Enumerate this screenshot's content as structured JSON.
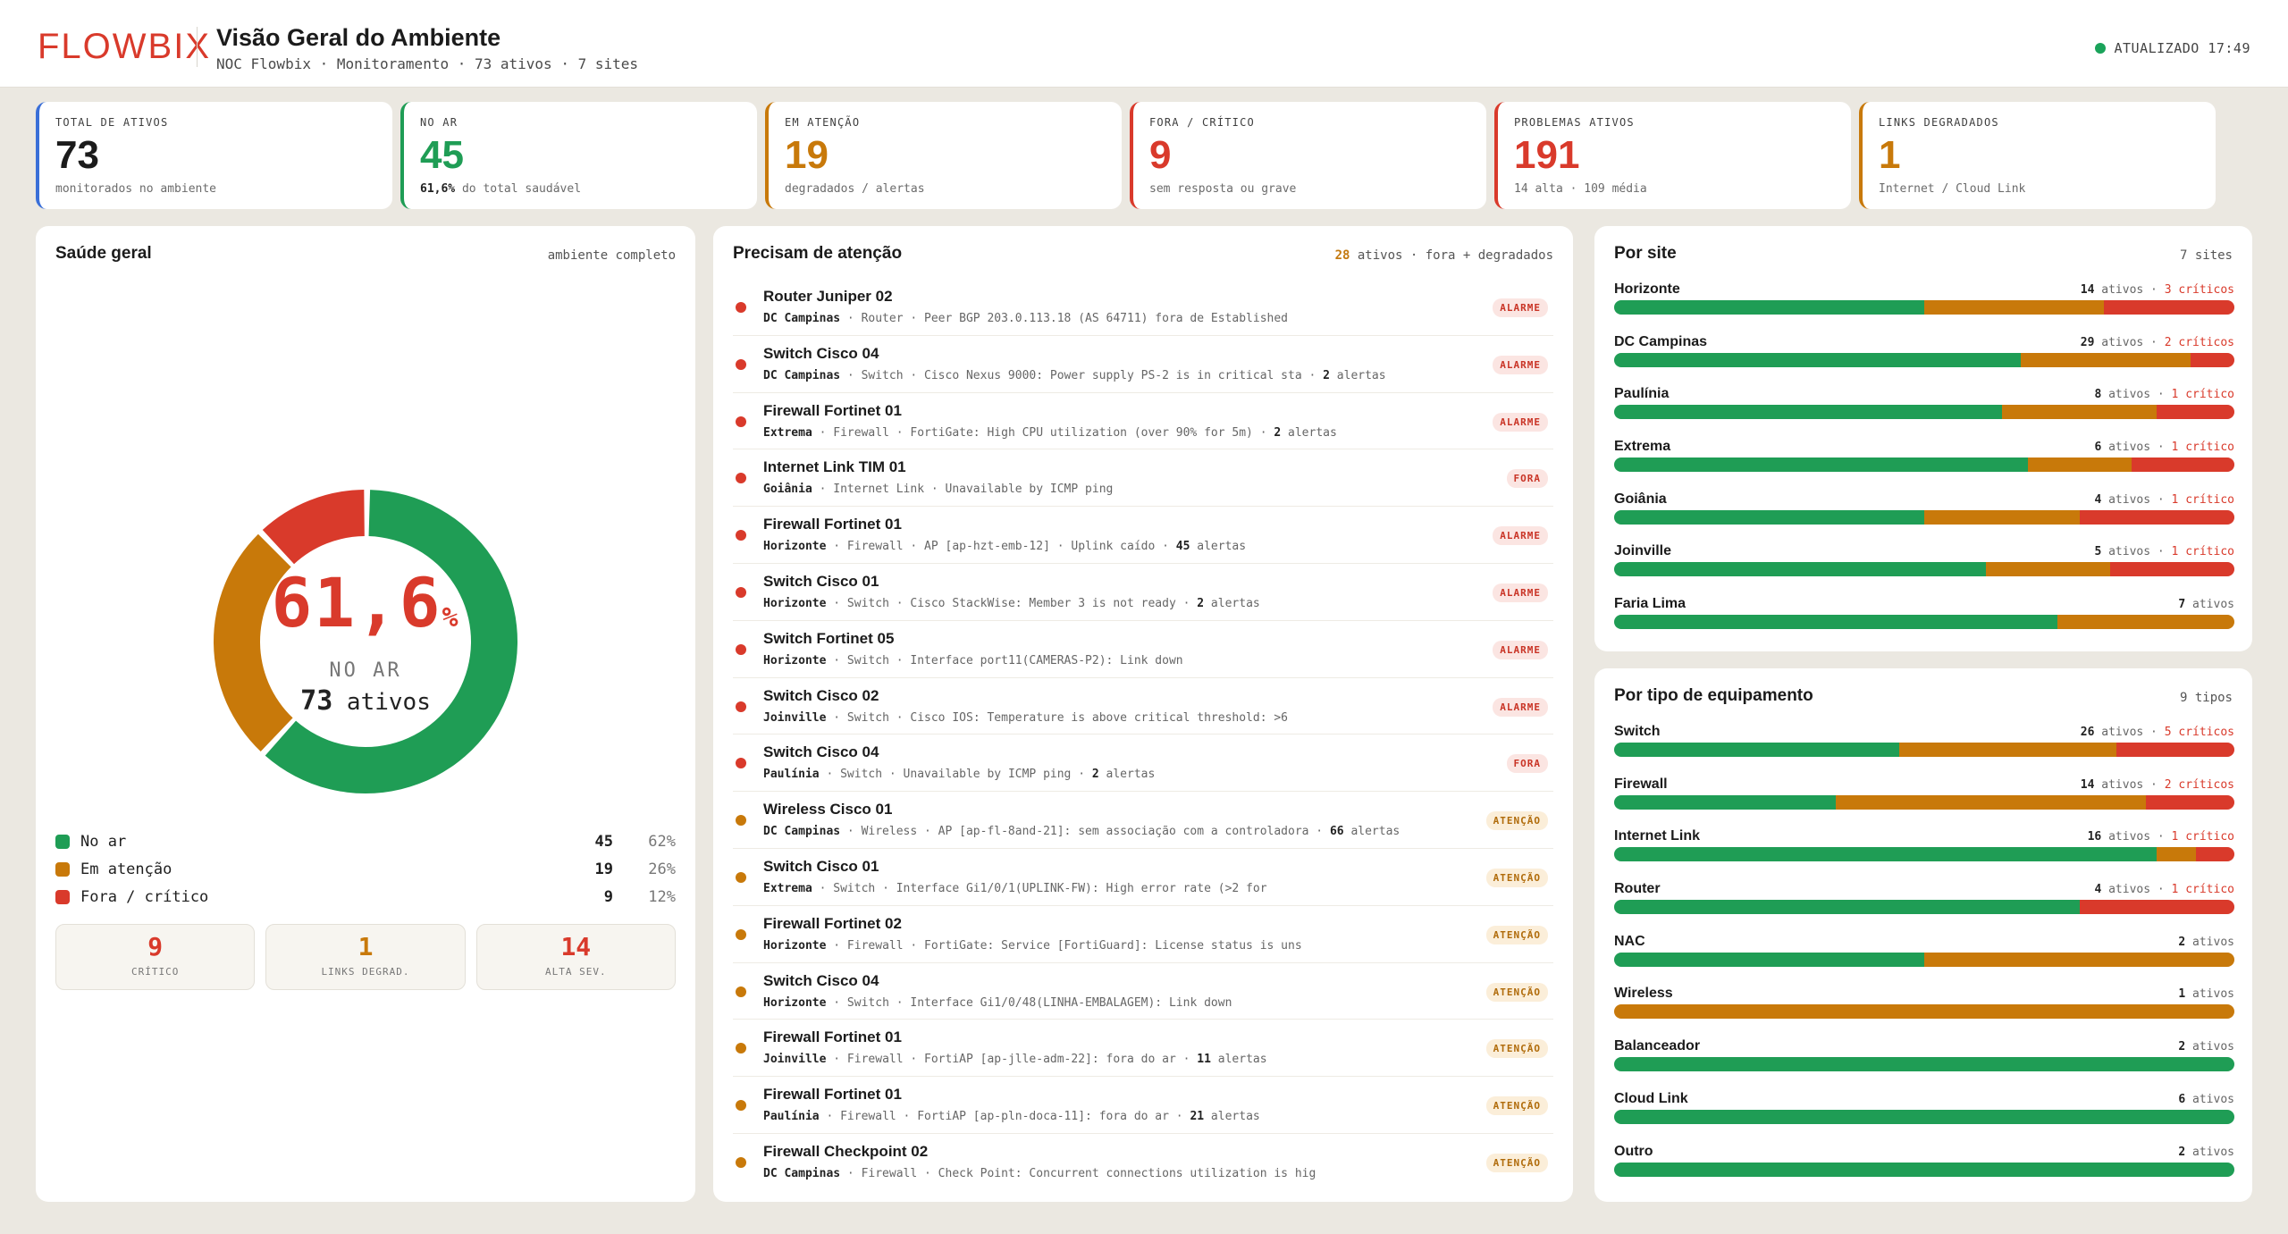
{
  "header": {
    "logo": "FLOWBIX",
    "title": "Visão Geral do Ambiente",
    "subtitle": "NOC Flowbix · Monitoramento · 73 ativos · 7 sites",
    "updated": "ATUALIZADO 17:49"
  },
  "colors": {
    "green": "#1f9d55",
    "amber": "#c8790a",
    "red": "#d93a2b",
    "blue": "#3a6fd8"
  },
  "kpis": [
    {
      "label": "TOTAL DE ATIVOS",
      "value": "73",
      "sub_bold": "",
      "sub": "monitorados no ambiente",
      "color": "#1b1b1b",
      "border": "#3a6fd8"
    },
    {
      "label": "NO AR",
      "value": "45",
      "sub_bold": "61,6%",
      "sub": " do total saudável",
      "color": "#1f9d55",
      "border": "#1f9d55"
    },
    {
      "label": "EM ATENÇÃO",
      "value": "19",
      "sub_bold": "",
      "sub": "degradados / alertas",
      "color": "#c8790a",
      "border": "#c8790a"
    },
    {
      "label": "FORA / CRÍTICO",
      "value": "9",
      "sub_bold": "",
      "sub": "sem resposta ou grave",
      "color": "#d93a2b",
      "border": "#d93a2b"
    },
    {
      "label": "PROBLEMAS ATIVOS",
      "value": "191",
      "sub_bold": "",
      "sub": "14 alta · 109 média",
      "color": "#d93a2b",
      "border": "#d93a2b"
    },
    {
      "label": "LINKS DEGRADADOS",
      "value": "1",
      "sub_bold": "",
      "sub": "Internet / Cloud Link",
      "color": "#c8790a",
      "border": "#c8790a"
    }
  ],
  "health": {
    "title": "Saúde geral",
    "meta": "ambiente completo",
    "percent_main": "61,6",
    "percent_sign": "%",
    "label": "NO AR",
    "assets_count": "73",
    "assets_word": "ativos",
    "segments": [
      {
        "name": "No ar",
        "value": 45,
        "color": "#1f9d55"
      },
      {
        "name": "Em atenção",
        "value": 19,
        "color": "#c8790a"
      },
      {
        "name": "Fora / crítico",
        "value": 9,
        "color": "#d93a2b"
      }
    ],
    "legend": [
      {
        "name": "No ar",
        "count": "45",
        "pct": "62%",
        "color": "#1f9d55"
      },
      {
        "name": "Em atenção",
        "count": "19",
        "pct": "26%",
        "color": "#c8790a"
      },
      {
        "name": "Fora / crítico",
        "count": "9",
        "pct": "12%",
        "color": "#d93a2b"
      }
    ],
    "minis": [
      {
        "value": "9",
        "label": "CRÍTICO",
        "color": "#d93a2b"
      },
      {
        "value": "1",
        "label": "LINKS DEGRAD.",
        "color": "#c8790a"
      },
      {
        "value": "14",
        "label": "ALTA SEV.",
        "color": "#d93a2b"
      }
    ]
  },
  "attention": {
    "title": "Precisam de atenção",
    "meta_count": "28",
    "meta_text": " ativos · fora + degradados",
    "items": [
      {
        "name": "Router Juniper 02",
        "site": "DC Campinas",
        "detail": " · Router · Peer BGP 203.0.113.18 (AS 64711) fora de Established",
        "alerts": "",
        "badge": "ALARME",
        "kind": "alarme",
        "dot": "#d93a2b"
      },
      {
        "name": "Switch Cisco 04",
        "site": "DC Campinas",
        "detail": " · Switch · Cisco Nexus 9000: Power supply PS-2 is in critical sta · ",
        "alerts": "2",
        "alerts_word": " alertas",
        "badge": "ALARME",
        "kind": "alarme",
        "dot": "#d93a2b"
      },
      {
        "name": "Firewall Fortinet 01",
        "site": "Extrema",
        "detail": " · Firewall · FortiGate: High CPU utilization (over 90% for 5m) · ",
        "alerts": "2",
        "alerts_word": " alertas",
        "badge": "ALARME",
        "kind": "alarme",
        "dot": "#d93a2b"
      },
      {
        "name": "Internet Link TIM 01",
        "site": "Goiânia",
        "detail": " · Internet Link · Unavailable by ICMP ping",
        "alerts": "",
        "badge": "FORA",
        "kind": "fora",
        "dot": "#d93a2b"
      },
      {
        "name": "Firewall Fortinet 01",
        "site": "Horizonte",
        "detail": " · Firewall · AP [ap-hzt-emb-12] · Uplink caído · ",
        "alerts": "45",
        "alerts_word": " alertas",
        "badge": "ALARME",
        "kind": "alarme",
        "dot": "#d93a2b"
      },
      {
        "name": "Switch Cisco 01",
        "site": "Horizonte",
        "detail": " · Switch · Cisco StackWise: Member 3 is not ready · ",
        "alerts": "2",
        "alerts_word": " alertas",
        "badge": "ALARME",
        "kind": "alarme",
        "dot": "#d93a2b"
      },
      {
        "name": "Switch Fortinet 05",
        "site": "Horizonte",
        "detail": " · Switch · Interface port11(CAMERAS-P2): Link down",
        "alerts": "",
        "badge": "ALARME",
        "kind": "alarme",
        "dot": "#d93a2b"
      },
      {
        "name": "Switch Cisco 02",
        "site": "Joinville",
        "detail": " · Switch · Cisco IOS: Temperature is above critical threshold: >6",
        "alerts": "",
        "badge": "ALARME",
        "kind": "alarme",
        "dot": "#d93a2b"
      },
      {
        "name": "Switch Cisco 04",
        "site": "Paulínia",
        "detail": " · Switch · Unavailable by ICMP ping · ",
        "alerts": "2",
        "alerts_word": " alertas",
        "badge": "FORA",
        "kind": "fora",
        "dot": "#d93a2b"
      },
      {
        "name": "Wireless Cisco 01",
        "site": "DC Campinas",
        "detail": " · Wireless · AP [ap-fl-8and-21]: sem associação com a controladora · ",
        "alerts": "66",
        "alerts_word": " alertas",
        "badge": "ATENÇÃO",
        "kind": "atencao",
        "dot": "#c8790a"
      },
      {
        "name": "Switch Cisco 01",
        "site": "Extrema",
        "detail": " · Switch · Interface Gi1/0/1(UPLINK-FW): High error rate (>2 for",
        "alerts": "",
        "badge": "ATENÇÃO",
        "kind": "atencao",
        "dot": "#c8790a"
      },
      {
        "name": "Firewall Fortinet 02",
        "site": "Horizonte",
        "detail": " · Firewall · FortiGate: Service [FortiGuard]: License status is uns",
        "alerts": "",
        "badge": "ATENÇÃO",
        "kind": "atencao",
        "dot": "#c8790a"
      },
      {
        "name": "Switch Cisco 04",
        "site": "Horizonte",
        "detail": " · Switch · Interface Gi1/0/48(LINHA-EMBALAGEM): Link down",
        "alerts": "",
        "badge": "ATENÇÃO",
        "kind": "atencao",
        "dot": "#c8790a"
      },
      {
        "name": "Firewall Fortinet 01",
        "site": "Joinville",
        "detail": " · Firewall · FortiAP [ap-jlle-adm-22]: fora do ar · ",
        "alerts": "11",
        "alerts_word": " alertas",
        "badge": "ATENÇÃO",
        "kind": "atencao",
        "dot": "#c8790a"
      },
      {
        "name": "Firewall Fortinet 01",
        "site": "Paulínia",
        "detail": " · Firewall · FortiAP [ap-pln-doca-11]: fora do ar · ",
        "alerts": "21",
        "alerts_word": " alertas",
        "badge": "ATENÇÃO",
        "kind": "atencao",
        "dot": "#c8790a"
      },
      {
        "name": "Firewall Checkpoint 02",
        "site": "DC Campinas",
        "detail": " · Firewall · Check Point: Concurrent connections utilization is hig",
        "alerts": "",
        "badge": "ATENÇÃO",
        "kind": "atencao",
        "dot": "#c8790a"
      }
    ]
  },
  "sites": {
    "title": "Por site",
    "meta": "7 sites",
    "rows": [
      {
        "name": "Horizonte",
        "count": "14",
        "crit": "3 críticos",
        "green": 0.5,
        "amber": 0.29,
        "red": 0.21
      },
      {
        "name": "DC Campinas",
        "count": "29",
        "crit": "2 críticos",
        "green": 0.655,
        "amber": 0.275,
        "red": 0.07
      },
      {
        "name": "Paulínia",
        "count": "8",
        "crit": "1 crítico",
        "green": 0.625,
        "amber": 0.25,
        "red": 0.125
      },
      {
        "name": "Extrema",
        "count": "6",
        "crit": "1 crítico",
        "green": 0.667,
        "amber": 0.167,
        "red": 0.166
      },
      {
        "name": "Goiânia",
        "count": "4",
        "crit": "1 crítico",
        "green": 0.5,
        "amber": 0.25,
        "red": 0.25
      },
      {
        "name": "Joinville",
        "count": "5",
        "crit": "1 crítico",
        "green": 0.6,
        "amber": 0.2,
        "red": 0.2
      },
      {
        "name": "Faria Lima",
        "count": "7",
        "crit": "",
        "green": 0.714,
        "amber": 0.286,
        "red": 0
      }
    ]
  },
  "types": {
    "title": "Por tipo de equipamento",
    "meta": "9 tipos",
    "rows": [
      {
        "name": "Switch",
        "count": "26",
        "crit": "5 críticos",
        "green": 0.46,
        "amber": 0.35,
        "red": 0.19
      },
      {
        "name": "Firewall",
        "count": "14",
        "crit": "2 críticos",
        "green": 0.357,
        "amber": 0.5,
        "red": 0.143
      },
      {
        "name": "Internet Link",
        "count": "16",
        "crit": "1 crítico",
        "green": 0.875,
        "amber": 0.0625,
        "red": 0.0625
      },
      {
        "name": "Router",
        "count": "4",
        "crit": "1 crítico",
        "green": 0.75,
        "amber": 0,
        "red": 0.25
      },
      {
        "name": "NAC",
        "count": "2",
        "crit": "",
        "green": 0.5,
        "amber": 0.5,
        "red": 0
      },
      {
        "name": "Wireless",
        "count": "1",
        "crit": "",
        "green": 0,
        "amber": 1,
        "red": 0
      },
      {
        "name": "Balanceador",
        "count": "2",
        "crit": "",
        "green": 1,
        "amber": 0,
        "red": 0
      },
      {
        "name": "Cloud Link",
        "count": "6",
        "crit": "",
        "green": 1,
        "amber": 0,
        "red": 0
      },
      {
        "name": "Outro",
        "count": "2",
        "crit": "",
        "green": 1,
        "amber": 0,
        "red": 0
      }
    ]
  },
  "words": {
    "ativos": " ativos",
    "sep": " · "
  }
}
